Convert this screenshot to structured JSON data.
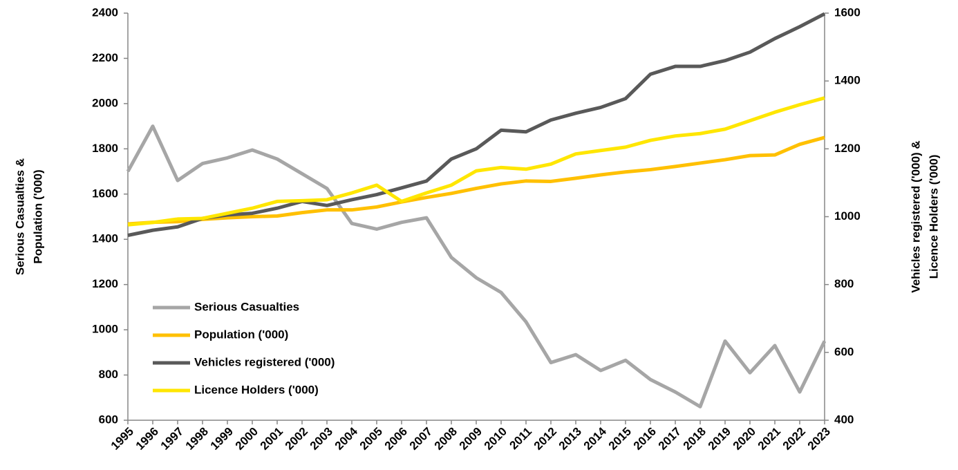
{
  "chart_data": {
    "type": "line",
    "ylabel": [
      "Serious Casualties &",
      "Population ('000)"
    ],
    "y2label": [
      "Vehicles registered ('000) &",
      "Licence Holders ('000)"
    ],
    "categories": [
      "1995",
      "1996",
      "1997",
      "1998",
      "1999",
      "2000",
      "2001",
      "2002",
      "2003",
      "2004",
      "2005",
      "2006",
      "2007",
      "2008",
      "2009",
      "2010",
      "2011",
      "2012",
      "2013",
      "2014",
      "2015",
      "2016",
      "2017",
      "2018",
      "2019",
      "2020",
      "2021",
      "2022",
      "2023"
    ],
    "ylim": [
      600,
      2400
    ],
    "yticks": [
      600,
      800,
      1000,
      1200,
      1400,
      1600,
      1800,
      2000,
      2200,
      2400
    ],
    "y2lim": [
      400,
      1600
    ],
    "y2ticks": [
      400,
      600,
      800,
      1000,
      1200,
      1400,
      1600
    ],
    "grid": false,
    "legend": "lower left",
    "series": [
      {
        "name": "Serious Casualties",
        "color": "#a6a6a6",
        "values": [
          1700,
          1900,
          1660,
          1735,
          1760,
          1795,
          1755,
          1690,
          1625,
          1470,
          1445,
          1475,
          1495,
          1320,
          1230,
          1165,
          1035,
          855,
          890,
          820,
          865,
          780,
          725,
          660,
          950,
          810,
          930,
          725,
          950
        ]
      },
      {
        "name": "Population ('000)",
        "color": "#ffc000",
        "values": [
          1468,
          1475,
          1478,
          1488,
          1495,
          1500,
          1503,
          1518,
          1530,
          1530,
          1543,
          1565,
          1585,
          1603,
          1625,
          1645,
          1658,
          1656,
          1670,
          1685,
          1698,
          1708,
          1722,
          1737,
          1752,
          1770,
          1773,
          1820,
          1850
        ]
      },
      {
        "name": "Vehicles registered ('000)",
        "color": "#595959",
        "axis": "y2",
        "values": [
          945,
          960,
          970,
          995,
          1005,
          1010,
          1025,
          1045,
          1033,
          1050,
          1065,
          1085,
          1105,
          1170,
          1200,
          1255,
          1250,
          1285,
          1305,
          1322,
          1348,
          1420,
          1443,
          1443,
          1460,
          1485,
          1525,
          1560,
          1598
        ]
      },
      {
        "name": "Licence Holders ('000)",
        "color": "#ffe600",
        "axis": "y2",
        "values": [
          976,
          983,
          993,
          995,
          1010,
          1025,
          1045,
          1047,
          1050,
          1070,
          1093,
          1045,
          1070,
          1093,
          1135,
          1145,
          1140,
          1155,
          1185,
          1195,
          1205,
          1225,
          1238,
          1245,
          1258,
          1283,
          1308,
          1330,
          1350
        ]
      }
    ]
  }
}
